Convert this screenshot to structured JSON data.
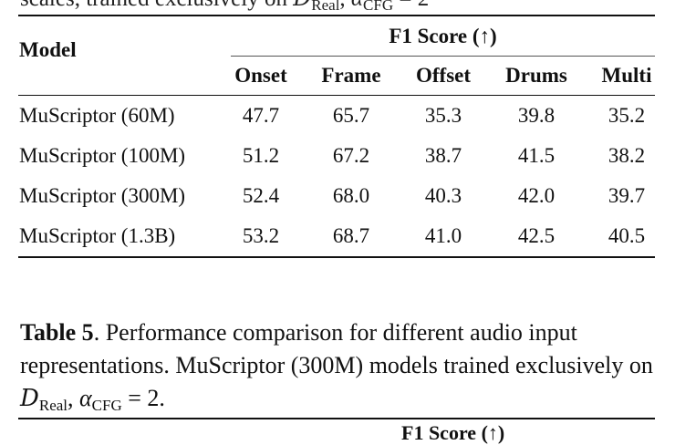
{
  "prev_caption_tail": "scales, trained exclusively on",
  "prev_caption_dataset": "D",
  "prev_caption_dataset_sub": "Real",
  "prev_caption_alpha": "α",
  "prev_caption_alpha_sub": "CFG",
  "prev_caption_eq": "= 2",
  "table": {
    "model_header": "Model",
    "group_header": "F1 Score (↑)",
    "columns": [
      "Onset",
      "Frame",
      "Offset",
      "Drums",
      "Multi"
    ],
    "rows": [
      {
        "model": "MuScriptor (60M)",
        "values": [
          "47.7",
          "65.7",
          "35.3",
          "39.8",
          "35.2"
        ]
      },
      {
        "model": "MuScriptor (100M)",
        "values": [
          "51.2",
          "67.2",
          "38.7",
          "41.5",
          "38.2"
        ]
      },
      {
        "model": "MuScriptor (300M)",
        "values": [
          "52.4",
          "68.0",
          "40.3",
          "42.0",
          "39.7"
        ]
      },
      {
        "model": "MuScriptor (1.3B)",
        "values": [
          "53.2",
          "68.7",
          "41.0",
          "42.5",
          "40.5"
        ]
      }
    ]
  },
  "caption": {
    "label": "Table 5",
    "text": ". Performance comparison for different audio input representations. MuScriptor (300M) models trained exclusively on ",
    "dataset": "D",
    "dataset_sub": "Real",
    "sep": ", ",
    "alpha": "α",
    "alpha_sub": "CFG",
    "eq": " = 2."
  },
  "next_table_header": "F1 Score (↑)"
}
